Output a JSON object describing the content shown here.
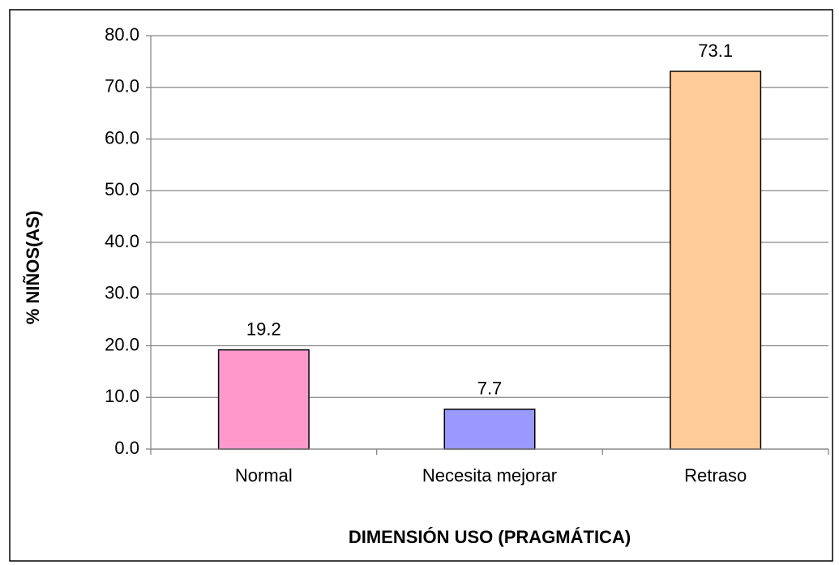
{
  "chart_data": {
    "type": "bar",
    "categories": [
      "Normal",
      "Necesita mejorar",
      "Retraso"
    ],
    "values": [
      19.2,
      7.7,
      73.1
    ],
    "colors": [
      "#ff99cc",
      "#9999ff",
      "#ffcc99"
    ],
    "ylabel": "% NIÑOS(AS)",
    "xlabel": "DIMENSIÓN USO (PRAGMÁTICA)",
    "ylim": [
      0,
      80
    ],
    "yticks": [
      {
        "value": 0,
        "label": "0.0"
      },
      {
        "value": 10,
        "label": "10.0"
      },
      {
        "value": 20,
        "label": "20.0"
      },
      {
        "value": 30,
        "label": "30.0"
      },
      {
        "value": 40,
        "label": "40.0"
      },
      {
        "value": 50,
        "label": "50.0"
      },
      {
        "value": 60,
        "label": "60.0"
      },
      {
        "value": 70,
        "label": "70.0"
      },
      {
        "value": 80,
        "label": "80.0"
      }
    ],
    "grid": true
  }
}
